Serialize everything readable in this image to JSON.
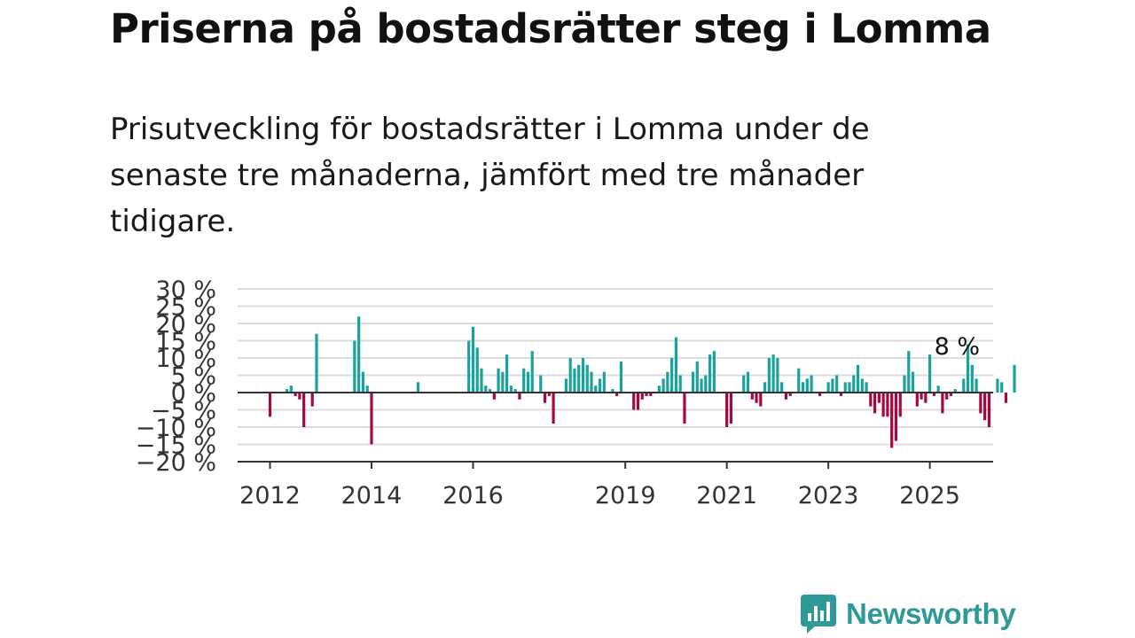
{
  "title": "Priserna på bostadsrätter steg i Lomma",
  "subtitle": "Prisutveckling för bostadsrätter i Lomma under de senaste tre månaderna, jämfört med tre månader tidigare.",
  "brand": {
    "name": "Newsworthy",
    "icon": "newsworthy-logo-icon",
    "color": "#2e9a98"
  },
  "colors": {
    "positive": "#1aa39d",
    "negative": "#a8073f",
    "grid": "#dddddd",
    "axis": "#333333"
  },
  "chart_data": {
    "type": "bar",
    "ylim": [
      -20,
      30
    ],
    "y_ticks": [
      30,
      25,
      20,
      15,
      10,
      5,
      0,
      -5,
      -10,
      -15,
      -20
    ],
    "y_tick_labels": [
      "30 %",
      "25 %",
      "20 %",
      "15 %",
      "10 %",
      "5 %",
      "0 %",
      "−5 %",
      "−10 %",
      "−15 %",
      "−20 %"
    ],
    "x_ticks": [
      {
        "label": "2012",
        "index": 0
      },
      {
        "label": "2014",
        "index": 24
      },
      {
        "label": "2016",
        "index": 48
      },
      {
        "label": "2019",
        "index": 84
      },
      {
        "label": "2021",
        "index": 108
      },
      {
        "label": "2023",
        "index": 132
      },
      {
        "label": "2025",
        "index": 156
      }
    ],
    "series": [
      {
        "values": [
          -7,
          0,
          0,
          0,
          1,
          2,
          -1,
          -2,
          -10,
          0,
          -4,
          17,
          0,
          0,
          0,
          0,
          0,
          0,
          0,
          0,
          15,
          22,
          6,
          2,
          -15,
          0,
          0,
          0,
          0,
          0,
          0,
          0,
          0,
          0,
          0,
          3,
          0,
          0,
          0,
          0,
          0,
          0,
          0,
          0,
          0,
          0,
          0,
          15,
          19,
          13,
          7,
          2,
          1,
          -2,
          7,
          6,
          11,
          2,
          1,
          -2,
          7,
          6,
          12,
          0,
          5,
          -3,
          -1,
          -9,
          0,
          0,
          4,
          10,
          7,
          8,
          10,
          8,
          6,
          2,
          4,
          6,
          0,
          1,
          -1,
          9,
          0,
          0,
          -5,
          -5,
          -2,
          -1,
          -1,
          0,
          2,
          4,
          6,
          10,
          16,
          5,
          -9,
          0,
          6,
          9,
          4,
          5,
          11,
          12,
          0,
          0,
          -10,
          -9,
          0,
          0,
          5,
          6,
          -2,
          -3,
          -4,
          3,
          10,
          11,
          10,
          3,
          -2,
          -1,
          0,
          7,
          3,
          4,
          5,
          0,
          -1,
          0,
          3,
          4,
          5,
          -1,
          3,
          3,
          5,
          8,
          4,
          3,
          -4,
          -6,
          -3,
          -7,
          -7,
          -16,
          -14,
          -7,
          5,
          12,
          6,
          -4,
          -2,
          -3,
          11,
          -1,
          2,
          -6,
          -2,
          -1,
          1,
          0,
          4,
          14,
          8,
          4,
          -6,
          -8,
          -10,
          0,
          4,
          3,
          -3,
          0,
          8
        ]
      }
    ],
    "annotation": {
      "text": "8 %"
    }
  }
}
